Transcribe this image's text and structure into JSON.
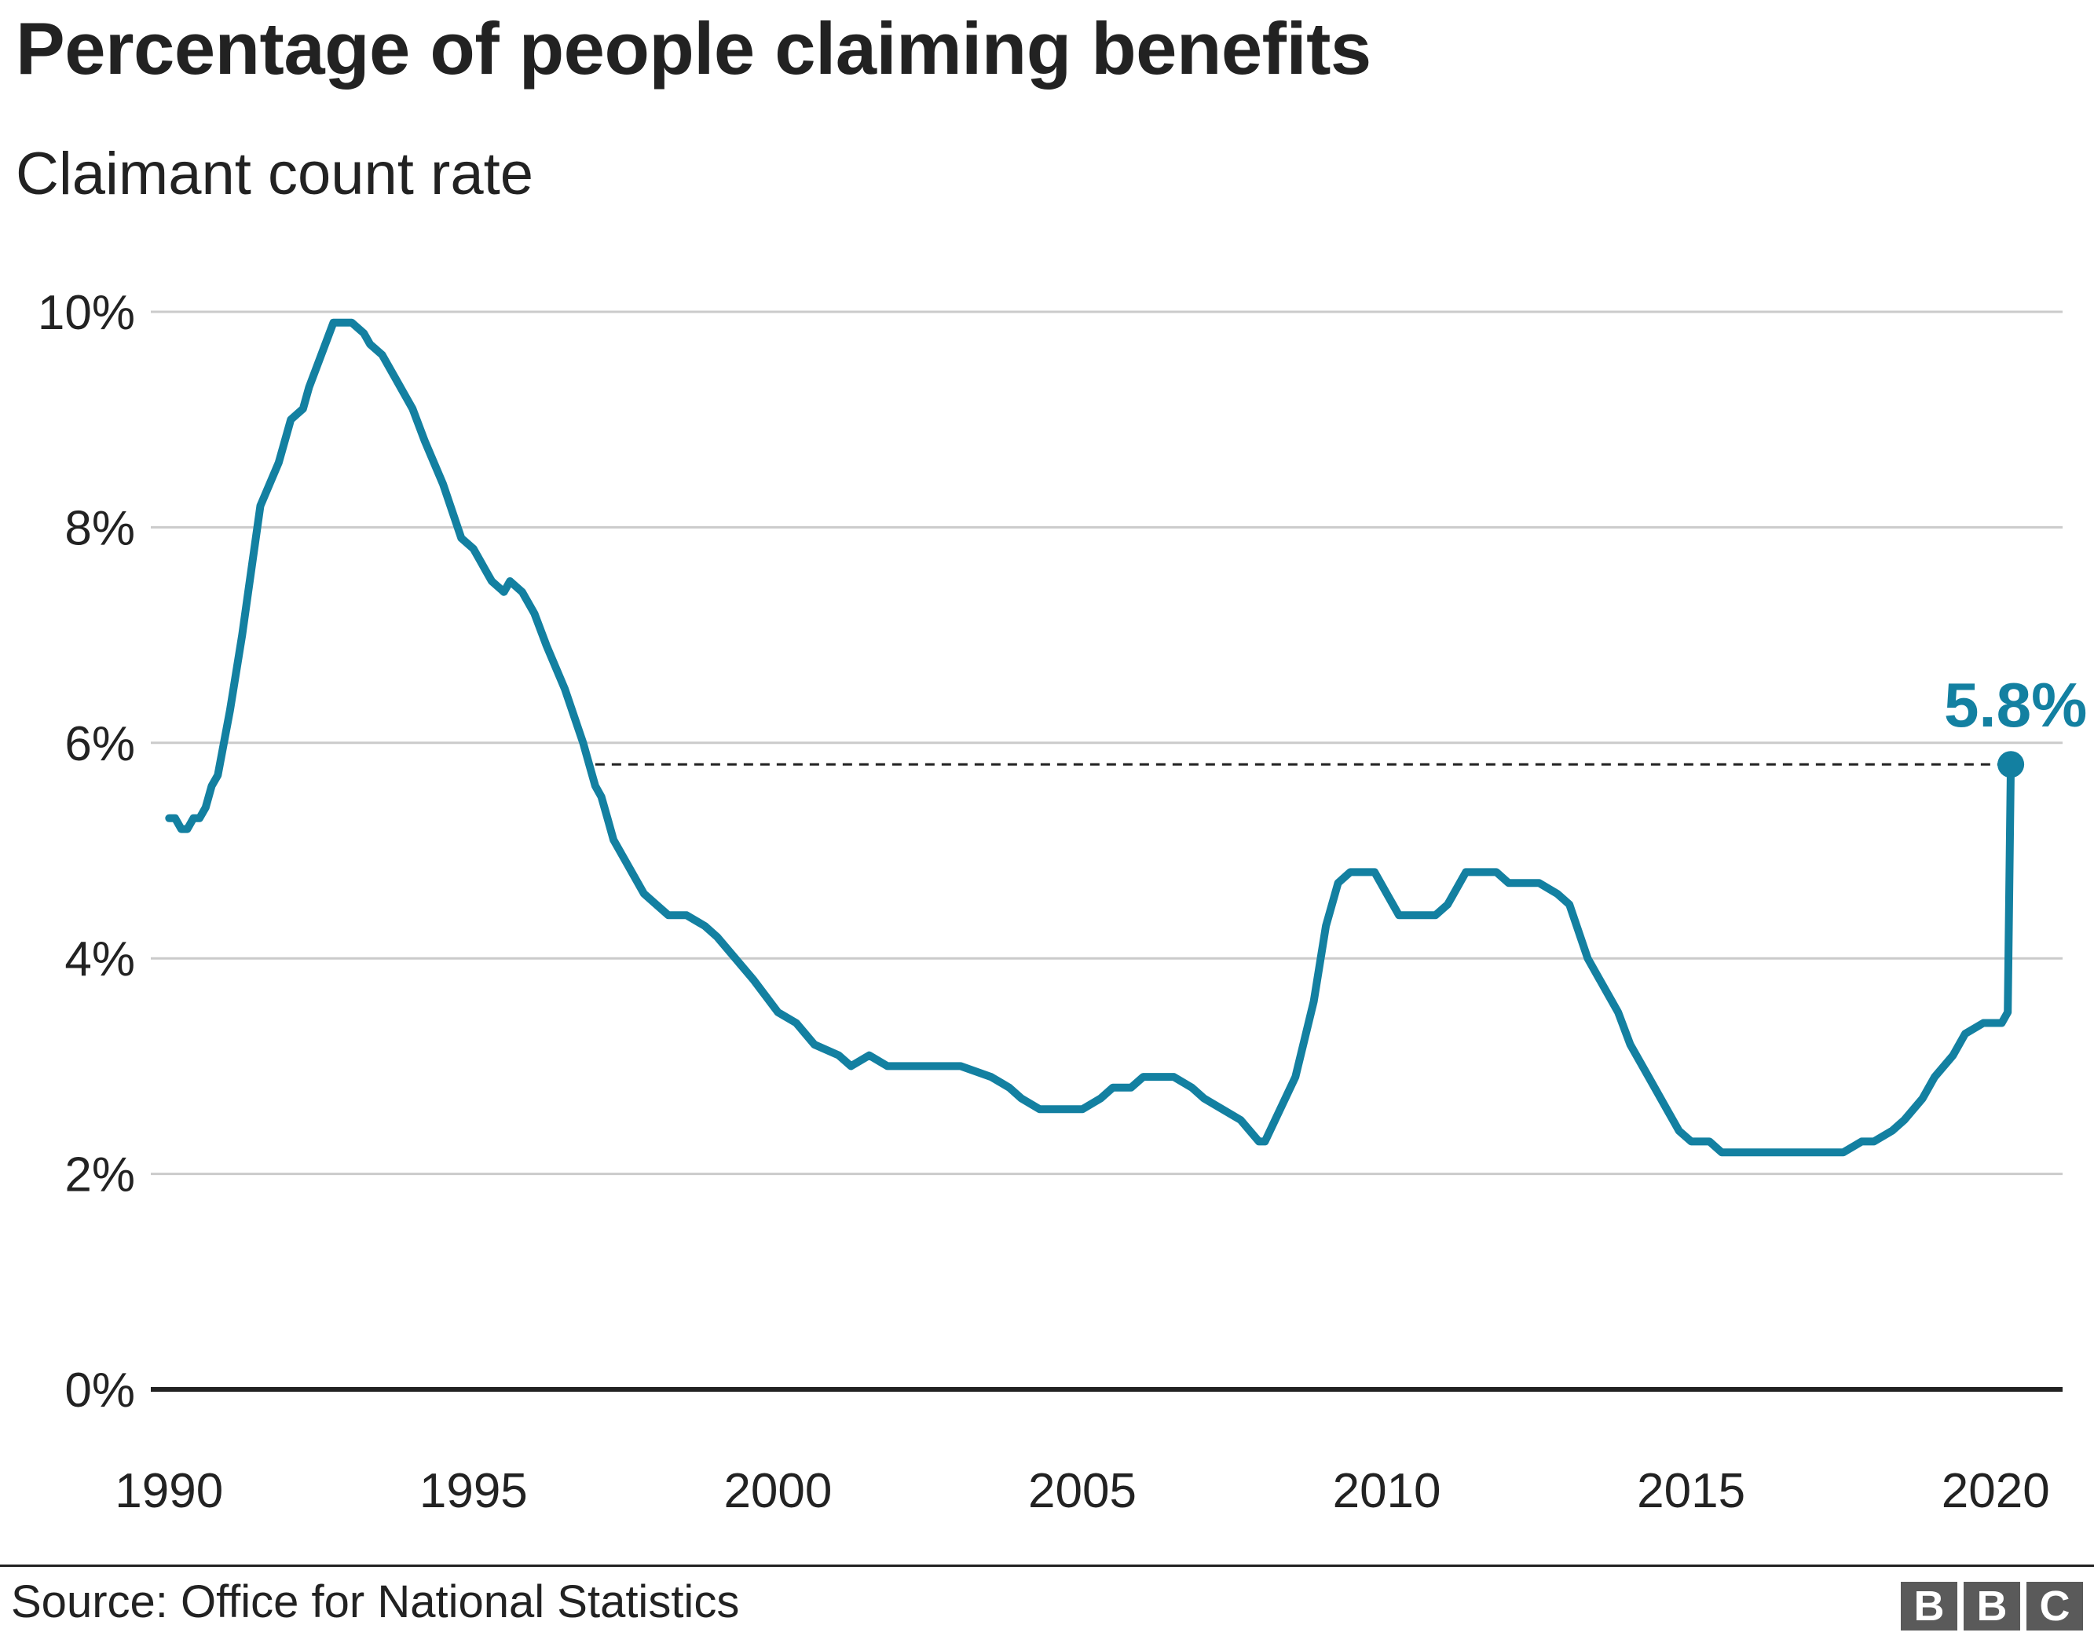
{
  "header": {
    "title": "Percentage of people claiming benefits",
    "subtitle": "Claimant count rate"
  },
  "footer": {
    "source": "Source: Office for National Statistics",
    "logo": [
      "B",
      "B",
      "C"
    ]
  },
  "colors": {
    "line": "#1380A1",
    "grid": "#cbcbcb",
    "text": "#222222",
    "baseline": "#222222"
  },
  "chart_data": {
    "type": "line",
    "title": "Percentage of people claiming benefits",
    "subtitle": "Claimant count rate",
    "xlabel": "",
    "ylabel": "",
    "xlim": [
      1989.7,
      2021.1
    ],
    "ylim": [
      0,
      10
    ],
    "yticks": [
      0,
      2,
      4,
      6,
      8,
      10
    ],
    "ytick_labels": [
      "0%",
      "2%",
      "4%",
      "6%",
      "8%",
      "10%"
    ],
    "xticks": [
      1990,
      1995,
      2000,
      2005,
      2010,
      2015,
      2020
    ],
    "xtick_labels": [
      "1990",
      "1995",
      "2000",
      "2005",
      "2010",
      "2015",
      "2020"
    ],
    "grid": true,
    "legend": "none",
    "series": [
      {
        "x": [
          1990.0,
          1990.1,
          1990.2,
          1990.3,
          1990.4,
          1990.5,
          1990.6,
          1990.7,
          1990.8,
          1991.0,
          1991.2,
          1991.3,
          1991.5,
          1991.8,
          1992.0,
          1992.2,
          1992.3,
          1992.5,
          1992.7,
          1992.8,
          1992.9,
          1993.0,
          1993.2,
          1993.3,
          1993.5,
          1993.7,
          1993.9,
          1994.0,
          1994.2,
          1994.5,
          1994.8,
          1995.0,
          1995.1,
          1995.2,
          1995.3,
          1995.5,
          1995.6,
          1995.8,
          1996.0,
          1996.2,
          1996.5,
          1996.8,
          1996.9,
          1997.0,
          1997.1,
          1997.2,
          1997.3,
          1997.5,
          1997.8,
          1998.0,
          1998.2,
          1998.5,
          1998.8,
          1999.0,
          1999.3,
          1999.6,
          2000.0,
          2000.3,
          2000.6,
          2001.0,
          2001.2,
          2001.5,
          2001.8,
          2002.0,
          2002.5,
          2003.0,
          2003.5,
          2003.8,
          2004.0,
          2004.3,
          2004.5,
          2004.8,
          2005.0,
          2005.3,
          2005.5,
          2005.8,
          2006.0,
          2006.5,
          2006.8,
          2007.0,
          2007.3,
          2007.6,
          2007.9,
          2008.0,
          2008.5,
          2008.8,
          2009.0,
          2009.2,
          2009.4,
          2009.6,
          2009.8,
          2010.0,
          2010.2,
          2010.5,
          2010.8,
          2011.0,
          2011.3,
          2011.5,
          2011.8,
          2012.0,
          2012.3,
          2012.5,
          2012.8,
          2013.0,
          2013.3,
          2013.8,
          2014.0,
          2014.3,
          2014.6,
          2014.8,
          2015.0,
          2015.3,
          2015.5,
          2015.8,
          2016.0,
          2016.5,
          2016.8,
          2017.0,
          2017.5,
          2017.8,
          2018.0,
          2018.3,
          2018.5,
          2018.8,
          2019.0,
          2019.3,
          2019.5,
          2019.8,
          2020.0,
          2020.1,
          2020.2,
          2020.25
        ],
        "values": [
          5.3,
          5.3,
          5.2,
          5.2,
          5.3,
          5.3,
          5.4,
          5.6,
          5.7,
          6.3,
          7.0,
          7.4,
          8.2,
          8.6,
          9.0,
          9.1,
          9.3,
          9.6,
          9.9,
          9.9,
          9.9,
          9.9,
          9.8,
          9.7,
          9.6,
          9.4,
          9.2,
          9.1,
          8.8,
          8.4,
          7.9,
          7.8,
          7.7,
          7.6,
          7.5,
          7.4,
          7.5,
          7.4,
          7.2,
          6.9,
          6.5,
          6.0,
          5.8,
          5.6,
          5.5,
          5.3,
          5.1,
          4.9,
          4.6,
          4.5,
          4.4,
          4.4,
          4.3,
          4.2,
          4.0,
          3.8,
          3.5,
          3.4,
          3.2,
          3.1,
          3.0,
          3.1,
          3.0,
          3.0,
          3.0,
          3.0,
          2.9,
          2.8,
          2.7,
          2.6,
          2.6,
          2.6,
          2.6,
          2.7,
          2.8,
          2.8,
          2.9,
          2.9,
          2.8,
          2.7,
          2.6,
          2.5,
          2.3,
          2.3,
          2.9,
          3.6,
          4.3,
          4.7,
          4.8,
          4.8,
          4.8,
          4.6,
          4.4,
          4.4,
          4.4,
          4.5,
          4.8,
          4.8,
          4.8,
          4.7,
          4.7,
          4.7,
          4.6,
          4.5,
          4.0,
          3.5,
          3.2,
          2.9,
          2.6,
          2.4,
          2.3,
          2.3,
          2.2,
          2.2,
          2.2,
          2.2,
          2.2,
          2.2,
          2.2,
          2.3,
          2.3,
          2.4,
          2.5,
          2.7,
          2.9,
          3.1,
          3.3,
          3.4,
          3.4,
          3.4,
          3.5,
          5.8
        ]
      }
    ],
    "annotations": [
      {
        "text": "5.8%",
        "x": 2020.25,
        "y": 5.8
      }
    ],
    "reference_line": {
      "y": 5.8,
      "x_from": 1997.0,
      "x_to": 2020.25,
      "style": "dashed"
    }
  }
}
